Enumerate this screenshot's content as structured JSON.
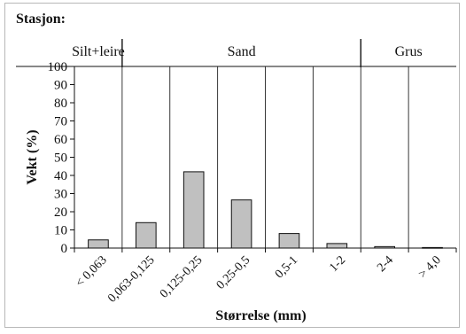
{
  "header": {
    "station_label": "Stasjon:"
  },
  "chart_data": {
    "type": "bar",
    "title": "",
    "xlabel": "Størrelse (mm)",
    "ylabel": "Vekt (%)",
    "ylim": [
      0,
      100
    ],
    "yticks": [
      0,
      10,
      20,
      30,
      40,
      50,
      60,
      70,
      80,
      90,
      100
    ],
    "grid": "vertical",
    "categories": [
      "< 0,063",
      "0,063-0,125",
      "0,125-0,25",
      "0,25-0,5",
      "0,5-1",
      "1-2",
      "2-4",
      "> 4,0"
    ],
    "values": [
      4.5,
      14,
      42,
      26.5,
      8,
      2.5,
      0.8,
      0.3
    ],
    "bar_color": "#c0c0c0",
    "groups": [
      {
        "label": "Silt+leire",
        "from": 0,
        "to": 1
      },
      {
        "label": "Sand",
        "from": 1,
        "to": 6
      },
      {
        "label": "Grus",
        "from": 6,
        "to": 8
      }
    ]
  }
}
